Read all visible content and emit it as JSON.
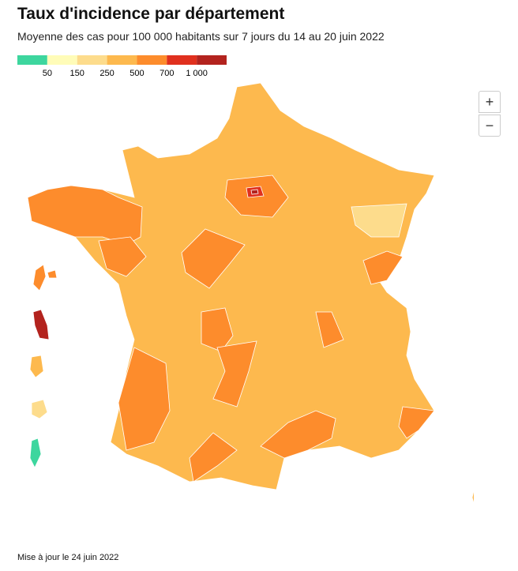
{
  "header": {
    "title": "Taux d'incidence par département",
    "subtitle": "Moyenne des cas pour 100 000 habitants sur 7 jours du 14 au 20 juin 2022"
  },
  "legend": {
    "colors": [
      "#3dd69e",
      "#fffcb8",
      "#fddc8c",
      "#fdb94e",
      "#fd8c2c",
      "#e0301e",
      "#b3231e"
    ],
    "labels": [
      "50",
      "150",
      "250",
      "500",
      "700",
      "1 000"
    ]
  },
  "controls": {
    "zoom_in": "+",
    "zoom_out": "−"
  },
  "footer": "Mise à jour le 24 juin 2022"
}
